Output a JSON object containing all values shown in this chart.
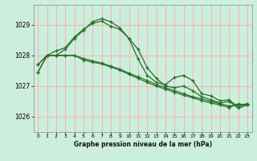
{
  "bg_color": "#cceedd",
  "grid_color": "#ffaaaa",
  "line_color": "#2a6e2a",
  "xlabel": "Graphe pression niveau de la mer (hPa)",
  "ylim": [
    1025.5,
    1029.65
  ],
  "xlim": [
    -0.5,
    23.5
  ],
  "yticks": [
    1026,
    1027,
    1028,
    1029
  ],
  "xticks": [
    0,
    1,
    2,
    3,
    4,
    5,
    6,
    7,
    8,
    9,
    10,
    11,
    12,
    13,
    14,
    15,
    16,
    17,
    18,
    19,
    20,
    21,
    22,
    23
  ],
  "series": [
    [
      1027.7,
      1028.0,
      1028.15,
      1028.25,
      1028.6,
      1028.85,
      1029.05,
      1029.12,
      1028.95,
      1028.85,
      1028.55,
      1028.2,
      1027.6,
      1027.25,
      1027.0,
      1026.95,
      1027.0,
      1026.85,
      1026.65,
      1026.55,
      1026.45,
      1026.5,
      1026.28,
      1026.38
    ],
    [
      1027.45,
      1028.0,
      1028.0,
      1028.0,
      1028.0,
      1027.85,
      1027.78,
      1027.72,
      1027.62,
      1027.52,
      1027.38,
      1027.25,
      1027.12,
      1027.0,
      1026.9,
      1026.8,
      1026.7,
      1026.62,
      1026.52,
      1026.45,
      1026.38,
      1026.3,
      1026.42,
      1026.38
    ],
    [
      1027.45,
      1028.0,
      1028.0,
      1028.0,
      1028.0,
      1027.9,
      1027.82,
      1027.75,
      1027.65,
      1027.55,
      1027.42,
      1027.3,
      1027.18,
      1027.05,
      1026.95,
      1026.85,
      1026.75,
      1026.65,
      1026.58,
      1026.5,
      1026.42,
      1026.35,
      1026.38,
      1026.42
    ],
    [
      1027.7,
      1028.0,
      1028.0,
      1028.2,
      1028.55,
      1028.82,
      1029.1,
      1029.2,
      1029.1,
      1028.9,
      1028.55,
      1027.88,
      1027.35,
      1027.12,
      1027.05,
      1027.28,
      1027.35,
      1027.18,
      1026.75,
      1026.68,
      1026.52,
      1026.55,
      1026.32,
      1026.42
    ]
  ]
}
